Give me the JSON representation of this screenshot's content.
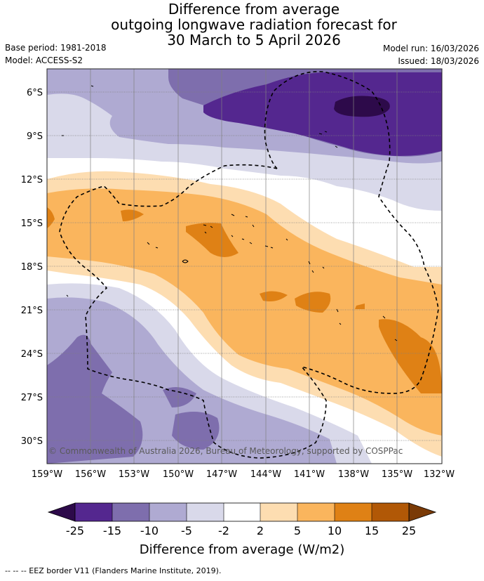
{
  "title": {
    "line1": "Difference from average",
    "line2": "outgoing longwave radiation forecast for",
    "line3": "30 March to 5 April 2026"
  },
  "meta": {
    "base_period": "Base period: 1981-2018",
    "model": "Model: ACCESS-S2",
    "model_run": "Model run: 16/03/2026",
    "issued": "Issued: 18/03/2026"
  },
  "map": {
    "lat_labels": [
      "6°S",
      "9°S",
      "12°S",
      "15°S",
      "18°S",
      "21°S",
      "24°S",
      "27°S",
      "30°S"
    ],
    "lon_labels": [
      "159°W",
      "156°W",
      "153°W",
      "150°W",
      "147°W",
      "144°W",
      "141°W",
      "138°W",
      "135°W",
      "132°W"
    ],
    "copyright": "© Commonwealth of Australia 2026, Bureau of Meteorology, supported by COSPPac"
  },
  "colorbar": {
    "ticks": [
      "-25",
      "-15",
      "-10",
      "-5",
      "-2",
      "2",
      "5",
      "10",
      "15",
      "25"
    ],
    "label": "Difference from average (W/m2)",
    "colors": [
      "#2d0a4a",
      "#54278f",
      "#7e6ead",
      "#afaad2",
      "#d9d9ea",
      "#ffffff",
      "#fdddb1",
      "#fab55d",
      "#df8115",
      "#b15806",
      "#7a3a06"
    ]
  },
  "eez_note": "--  --  -- EEZ border V11 (Flanders Marine Institute, 2019)."
}
